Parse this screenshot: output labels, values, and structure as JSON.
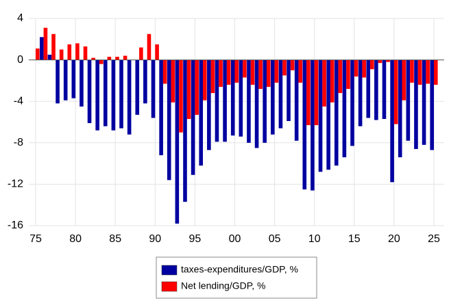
{
  "chart_data": {
    "type": "bar",
    "categories": [
      "75",
      null,
      null,
      null,
      null,
      "80",
      null,
      null,
      null,
      null,
      "85",
      null,
      null,
      null,
      null,
      "90",
      null,
      null,
      null,
      null,
      "95",
      null,
      null,
      null,
      null,
      "00",
      null,
      null,
      null,
      null,
      "05",
      null,
      null,
      null,
      null,
      "10",
      null,
      null,
      null,
      null,
      "15",
      null,
      null,
      null,
      null,
      "20",
      null,
      null,
      null,
      null,
      "25"
    ],
    "series": [
      {
        "name": "taxes-expenditures/GDP, %",
        "color": "#0000a0",
        "values": [
          0,
          2.2,
          0.5,
          -4.2,
          -3.9,
          -3.7,
          -4.5,
          -6.1,
          -6.8,
          -6.4,
          -6.8,
          -6.6,
          -7.2,
          -5.3,
          -4.2,
          -5.6,
          -9.2,
          -11.6,
          -15.8,
          -13.7,
          -11.1,
          -10.2,
          -8.7,
          -7.9,
          -7.9,
          -7.3,
          -7.4,
          -8.0,
          -8.5,
          -8.0,
          -7.2,
          -6.6,
          -5.9,
          -7.8,
          -12.5,
          -12.6,
          -10.8,
          -10.6,
          -10.2,
          -9.4,
          -8.3,
          -6.4,
          -5.6,
          -5.8,
          -5.7,
          -11.8,
          -9.4,
          -7.8,
          -8.6,
          -8.2,
          -8.7
        ]
      },
      {
        "name": "Net lending/GDP, %",
        "color": "#ff0000",
        "values": [
          1.1,
          3.1,
          2.5,
          1.0,
          1.5,
          1.6,
          1.3,
          0.2,
          -0.4,
          0.3,
          0.3,
          0.4,
          0.0,
          1.2,
          2.5,
          1.5,
          -2.3,
          -4.1,
          -7.0,
          -5.7,
          -5.3,
          -3.9,
          -3.2,
          -2.6,
          -2.4,
          -2.2,
          -1.7,
          -2.4,
          -2.8,
          -2.6,
          -2.2,
          -1.5,
          -1.0,
          -2.2,
          -6.3,
          -6.3,
          -4.5,
          -4.1,
          -3.2,
          -2.8,
          -1.6,
          -1.7,
          -0.9,
          -0.3,
          -0.2,
          -6.2,
          -3.9,
          -2.2,
          -2.4,
          -2.3,
          -2.4
        ]
      }
    ],
    "ylim": [
      -16,
      4
    ],
    "yticks": [
      4,
      0,
      -4,
      -8,
      -12,
      -16
    ],
    "grid": true
  }
}
